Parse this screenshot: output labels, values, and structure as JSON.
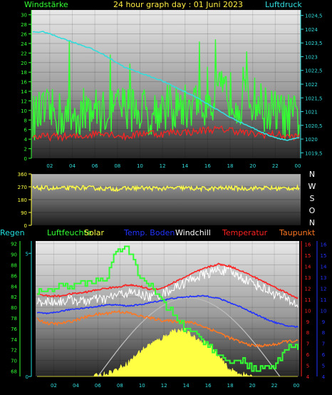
{
  "header": {
    "title": "24 hour graph day : 01 Juni 2023",
    "left_label": "Windstärke",
    "right_label": "Luftdruck"
  },
  "compass": [
    "N",
    "W",
    "S",
    "O",
    "N"
  ],
  "legend": [
    {
      "label": "Regen",
      "color": "#22dddd"
    },
    {
      "label": "Luftfeuchte",
      "color": "#33ff33"
    },
    {
      "label": "Solar",
      "color": "#ffff44"
    },
    {
      "label": "Temp. Boden",
      "color": "#2233ff"
    },
    {
      "label": "Windchill",
      "color": "#ffffff"
    },
    {
      "label": "Temperatur",
      "color": "#ff2222"
    },
    {
      "label": "Taupunkt",
      "color": "#ff7722"
    }
  ],
  "chart_data": [
    {
      "type": "line",
      "x_ticks": [
        "02",
        "04",
        "06",
        "08",
        "10",
        "12",
        "14",
        "16",
        "18",
        "20",
        "22",
        "00"
      ],
      "left_axis": {
        "ticks": [
          "0",
          "2",
          "4",
          "6",
          "8",
          "10",
          "12",
          "14",
          "16",
          "18",
          "20",
          "22",
          "24",
          "26",
          "28",
          "30"
        ],
        "ylim": [
          0,
          31
        ],
        "color": "#33ff33"
      },
      "right_axis": {
        "ticks": [
          "1019,5",
          "1020",
          "1020,5",
          "1021",
          "1021,5",
          "1022",
          "1022,5",
          "1023",
          "1023,5",
          "1024",
          "1024,5"
        ],
        "ylim": [
          1019.3,
          1024.7
        ],
        "color": "#33dddd"
      },
      "series": [
        {
          "name": "Windstärke",
          "color": "#33ff33",
          "values_hourly": [
            8,
            9,
            9,
            8,
            9,
            10,
            9,
            10,
            10,
            10,
            9,
            10,
            10,
            10,
            11,
            11,
            13,
            13,
            11,
            12,
            10,
            9,
            8,
            8
          ]
        },
        {
          "name": "Luftdruck",
          "color": "#33dddd",
          "values_hourly": [
            1023.9,
            1023.9,
            1023.75,
            1023.6,
            1023.45,
            1023.3,
            1023.1,
            1022.85,
            1022.6,
            1022.45,
            1022.3,
            1022.15,
            1021.95,
            1021.75,
            1021.55,
            1021.3,
            1021.05,
            1020.8,
            1020.6,
            1020.4,
            1020.2,
            1020.05,
            1019.95,
            1020.05
          ]
        },
        {
          "color": "#ff2222",
          "values_hourly": [
            4.5,
            4.5,
            4.5,
            4.5,
            4.5,
            5,
            5.5,
            5,
            4.5,
            5,
            5.5,
            5,
            5.5,
            5.5,
            5.5,
            6,
            6,
            6,
            5.5,
            5,
            5,
            5,
            4.5,
            4.5
          ]
        }
      ]
    },
    {
      "type": "line",
      "x_ticks": [],
      "left_axis": {
        "ticks": [
          "0",
          "90",
          "180",
          "270",
          "360"
        ],
        "ylim": [
          0,
          360
        ],
        "color": "#ffff44"
      },
      "series": [
        {
          "color": "#ffff44",
          "values_hourly": [
            260,
            262,
            258,
            260,
            265,
            262,
            258,
            255,
            258,
            262,
            260,
            258,
            260,
            262,
            258,
            256,
            260,
            262,
            258,
            260,
            262,
            258,
            260,
            262
          ]
        }
      ]
    },
    {
      "type": "line",
      "x_ticks": [
        "02",
        "04",
        "06",
        "08",
        "10",
        "12",
        "14",
        "16",
        "18",
        "20",
        "22",
        "00"
      ],
      "left_axis": {
        "ticks": [
          "68",
          "70",
          "72",
          "74",
          "76",
          "78",
          "80",
          "82",
          "84",
          "86",
          "88",
          "90",
          "92"
        ],
        "ylim": [
          67,
          92.5
        ],
        "color": "#33ff33"
      },
      "rain_axis": {
        "ticks": [
          "0",
          "5"
        ],
        "ylim": [
          0,
          5.5
        ],
        "color": "#22dddd"
      },
      "right_axis": {
        "ticks": [
          "4",
          "5",
          "6",
          "7",
          "8",
          "9",
          "10",
          "11",
          "12",
          "13",
          "14",
          "15",
          "16"
        ],
        "ylim": [
          4,
          16.3
        ],
        "color": "#ff2222"
      },
      "right_axis2": {
        "ticks": [
          "4",
          "5",
          "6",
          "7",
          "8",
          "9",
          "10",
          "11",
          "12",
          "13",
          "14",
          "15",
          "16"
        ],
        "ylim": [
          4,
          16.3
        ],
        "color": "#2233ff"
      },
      "series": [
        {
          "name": "Luftfeuchte",
          "color": "#33ff33",
          "values_hourly": [
            83,
            83,
            84,
            84,
            84.5,
            85,
            85,
            91,
            91,
            86,
            84,
            81,
            79,
            76,
            75,
            73,
            71,
            70,
            70,
            68.5,
            68.5,
            69,
            72.5,
            72.5
          ]
        },
        {
          "name": "Solar",
          "color": "#ffff44",
          "values_hourly": [
            0,
            0,
            0,
            0,
            0,
            0,
            0.02,
            0.05,
            0.1,
            0.18,
            0.24,
            0.28,
            0.34,
            0.34,
            0.28,
            0.25,
            0.15,
            0.05,
            0.02,
            0,
            0,
            0,
            0,
            0
          ]
        },
        {
          "name": "Temp. Boden",
          "color": "#2233ff",
          "values_hourly": [
            9.8,
            9.7,
            9.9,
            10.1,
            10.2,
            10.3,
            10.5,
            10.5,
            10.4,
            10.5,
            10.7,
            10.9,
            11.1,
            11.2,
            11.3,
            11.3,
            11.1,
            10.7,
            10.3,
            9.8,
            9.3,
            8.9,
            8.6,
            8.5
          ]
        },
        {
          "name": "Windchill",
          "color": "#ffffff",
          "values_hourly": [
            10.8,
            10.8,
            10.8,
            11,
            10.8,
            11,
            11,
            11.4,
            11.6,
            11.5,
            11.2,
            11.5,
            12,
            12.5,
            13,
            13.3,
            13.7,
            13.5,
            13,
            12.5,
            12,
            11.5,
            11,
            10.5
          ]
        },
        {
          "name": "Temperatur",
          "color": "#ff2222",
          "values_hourly": [
            11.5,
            11.3,
            11.3,
            11.5,
            11.6,
            11.8,
            12,
            12.1,
            12.3,
            12.2,
            11.9,
            12,
            12.5,
            13,
            13.5,
            13.9,
            14.2,
            14,
            13.6,
            13.1,
            12.6,
            12.1,
            11.6,
            11.1
          ]
        },
        {
          "name": "Taupunkt",
          "color": "#ff7722",
          "values_hourly": [
            9.2,
            8.8,
            8.8,
            9,
            9.3,
            9.6,
            9.7,
            9.9,
            9.8,
            9.5,
            9.3,
            9.1,
            9,
            9,
            8.8,
            8.4,
            8,
            7.5,
            7.1,
            6.8,
            6.8,
            6.9,
            7.2,
            7.2
          ]
        }
      ]
    }
  ]
}
